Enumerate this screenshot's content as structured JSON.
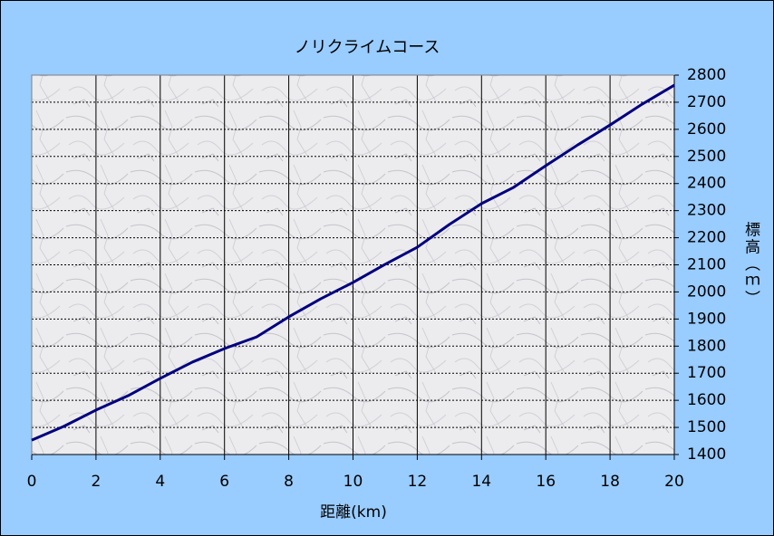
{
  "chart_data": {
    "type": "line",
    "title": "ノリクライムコース",
    "x_label": "距離(km)",
    "y_label": "標高（ｍ）",
    "x": [
      0,
      1,
      2,
      3,
      4,
      5,
      6,
      7,
      8,
      9,
      10,
      11,
      12,
      13,
      14,
      15,
      16,
      17,
      18,
      19,
      20
    ],
    "series": [
      {
        "name": "標高",
        "color": "#000080",
        "values": [
          1453,
          1504,
          1564,
          1617,
          1681,
          1741,
          1791,
          1834,
          1908,
          1975,
          2035,
          2102,
          2165,
          2249,
          2326,
          2386,
          2466,
          2543,
          2616,
          2693,
          2763
        ]
      }
    ],
    "xlim": [
      0,
      20
    ],
    "xticks": [
      0,
      2,
      4,
      6,
      8,
      10,
      12,
      14,
      16,
      18,
      20
    ],
    "ylim": [
      1400,
      2800
    ],
    "yticks": [
      1400,
      1500,
      1600,
      1700,
      1800,
      1900,
      2000,
      2100,
      2200,
      2300,
      2400,
      2500,
      2600,
      2700,
      2800
    ],
    "grid": true,
    "y_axis_side": "right"
  }
}
